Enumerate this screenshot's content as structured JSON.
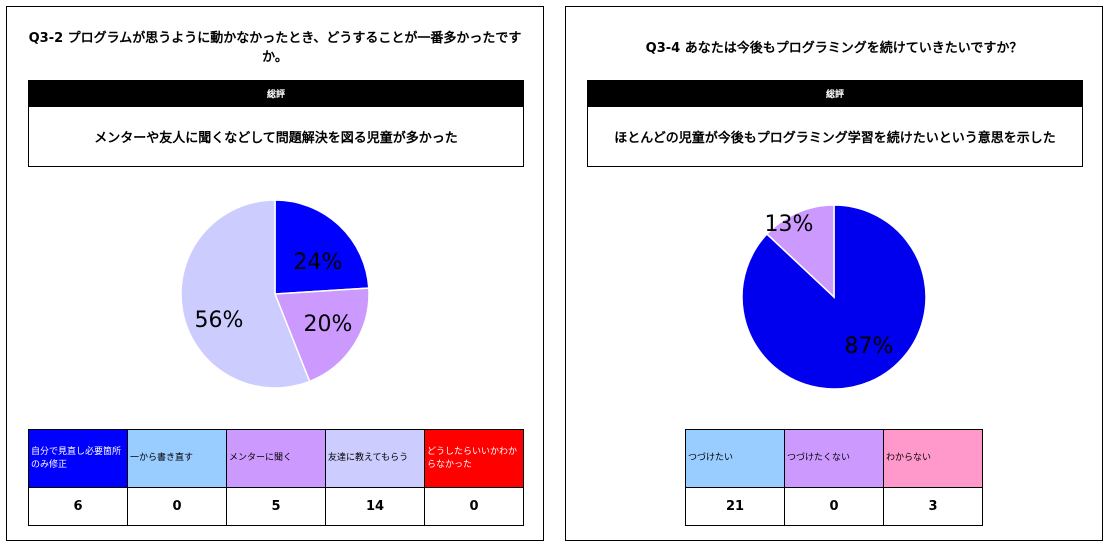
{
  "panels": [
    {
      "question": "Q3-2 プログラムが思うように動かなかったとき、どうすることが一番多かったですか。",
      "summary_header": "総評",
      "summary_text": "メンターや友人に聞くなどして問題解決を図る児童が多かった",
      "legend": [
        {
          "label": "自分で見直し必要箇所のみ修正",
          "value": "6",
          "color": "#0000ff",
          "text_color": "#ffffff"
        },
        {
          "label": "一から書き直す",
          "value": "0",
          "color": "#99ccff",
          "text_color": "#000000"
        },
        {
          "label": "メンターに聞く",
          "value": "5",
          "color": "#cc99ff",
          "text_color": "#000000"
        },
        {
          "label": "友達に教えてもらう",
          "value": "14",
          "color": "#ccccff",
          "text_color": "#000000"
        },
        {
          "label": "どうしたらいいかわからなかった",
          "value": "0",
          "color": "#ff0000",
          "text_color": "#ffffff"
        }
      ]
    },
    {
      "question": "Q3-4 あなたは今後もプログラミングを続けていきたいですか？",
      "summary_header": "総評",
      "summary_text": "ほとんどの児童が今後もプログラミング学習を続けたいという意思を示した",
      "legend": [
        {
          "label": "つづけたい",
          "value": "21",
          "color": "#99ccff",
          "text_color": "#000000"
        },
        {
          "label": "つづけたくない",
          "value": "0",
          "color": "#cc99ff",
          "text_color": "#000000"
        },
        {
          "label": "わからない",
          "value": "3",
          "color": "#ff99cc",
          "text_color": "#000000"
        }
      ]
    }
  ],
  "chart_data": [
    {
      "type": "pie",
      "categories": [
        "自分で見直し必要箇所のみ修正",
        "一から書き直す",
        "メンターに聞く",
        "友達に教えてもらう",
        "どうしたらいいかわからなかった"
      ],
      "values": [
        6,
        0,
        5,
        14,
        0
      ],
      "slices": [
        {
          "value": 24,
          "color": "#0000ff",
          "label": "24%"
        },
        {
          "value": 20,
          "color": "#cc99ff",
          "label": "20%"
        },
        {
          "value": 56,
          "color": "#ccccff",
          "label": "56%"
        }
      ]
    },
    {
      "type": "pie",
      "categories": [
        "つづけたい",
        "つづけたくない",
        "わからない"
      ],
      "values": [
        21,
        0,
        3
      ],
      "slices": [
        {
          "value": 87,
          "color": "#0000ee",
          "label": "87%"
        },
        {
          "value": 13,
          "color": "#cc99ff",
          "label": "13%"
        }
      ]
    }
  ]
}
